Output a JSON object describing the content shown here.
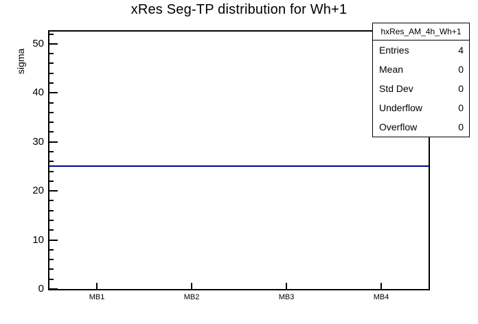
{
  "page": {
    "background": "#ffffff",
    "title": "xRes Seg-TP distribution for Wh+1"
  },
  "colors": {
    "histogram_line": "#000099",
    "frame": "#000000",
    "text": "#000000",
    "stats_background": "#ffffff"
  },
  "y_axis": {
    "label": "sigma",
    "major_ticks": [
      0,
      10,
      20,
      30,
      40,
      50
    ],
    "minor_step": 2,
    "min": 0,
    "max": 52.5
  },
  "x_axis": {
    "categories": [
      "MB1",
      "MB2",
      "MB3",
      "MB4"
    ]
  },
  "stats_box": {
    "title": "hxRes_AM_4h_Wh+1",
    "rows": [
      {
        "label": "Entries",
        "value": "4"
      },
      {
        "label": "Mean",
        "value": "0"
      },
      {
        "label": "Std Dev",
        "value": "0"
      },
      {
        "label": "Underflow",
        "value": "0"
      },
      {
        "label": "Overflow",
        "value": "0"
      }
    ]
  },
  "chart_data": {
    "type": "line",
    "title": "xRes Seg-TP distribution for Wh+1",
    "categories": [
      "MB1",
      "MB2",
      "MB3",
      "MB4"
    ],
    "series": [
      {
        "name": "hxRes_AM_4h_Wh+1",
        "values": [
          25,
          25,
          25,
          25
        ],
        "color": "#000099"
      }
    ],
    "xlabel": "",
    "ylabel": "sigma",
    "ylim": [
      0,
      52.5
    ],
    "y_major_ticks": [
      0,
      10,
      20,
      30,
      40,
      50
    ],
    "y_minor_tick_step": 2,
    "grid": false,
    "legend_position": "none",
    "stats": {
      "name": "hxRes_AM_4h_Wh+1",
      "entries": 4,
      "mean": 0,
      "std_dev": 0,
      "underflow": 0,
      "overflow": 0
    }
  }
}
